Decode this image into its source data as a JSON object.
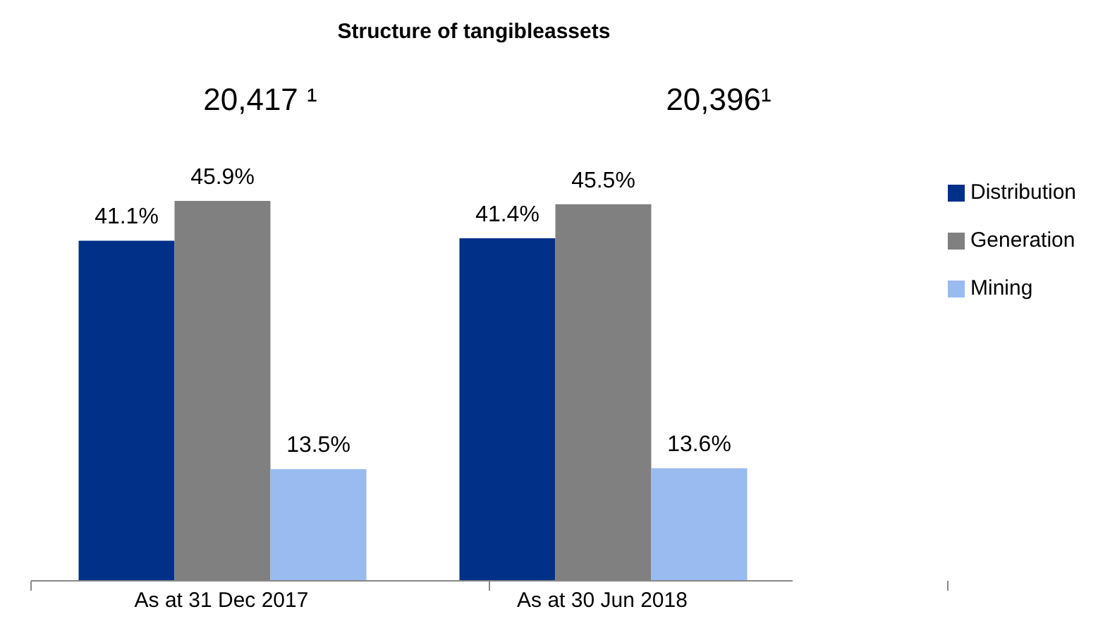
{
  "chart_data": {
    "type": "bar",
    "title": "Structure of tangibleassets",
    "categories": [
      "As at 31 Dec 2017",
      "As at 30 Jun 2018"
    ],
    "series": [
      {
        "name": "Distribution",
        "color": "#003087",
        "values": [
          41.1,
          41.4
        ],
        "value_labels": [
          "41.1%",
          "41.4%"
        ]
      },
      {
        "name": "Generation",
        "color": "#808080",
        "values": [
          45.9,
          45.5
        ],
        "value_labels": [
          "45.9%",
          "45.5%"
        ]
      },
      {
        "name": "Mining",
        "color": "#99bbf0",
        "values": [
          13.5,
          13.6
        ],
        "value_labels": [
          "13.5%",
          "13.6%"
        ]
      }
    ],
    "annotations": [
      "20,417 ¹",
      "20,396¹"
    ],
    "legend": "right",
    "grid": false
  }
}
